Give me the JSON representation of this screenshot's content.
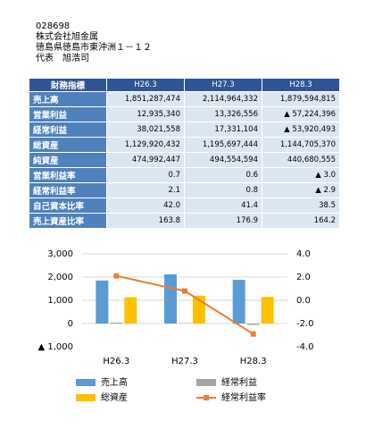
{
  "company": {
    "code": "028698",
    "name": "株式会社旭金属",
    "address": "徳島県徳島市東沖洲１－１２",
    "representative": "代表　旭浩司"
  },
  "table": {
    "header": [
      "財務指標",
      "H26.3",
      "H27.3",
      "H28.3"
    ],
    "rows": [
      [
        "売上高",
        "1,851,287,474",
        "2,114,964,332",
        "1,879,594,815"
      ],
      [
        "営業利益",
        "12,935,340",
        "13,326,556",
        "▲ 57,224,396"
      ],
      [
        "経常利益",
        "38,021,558",
        "17,331,104",
        "▲ 53,920,493"
      ],
      [
        "総資産",
        "1,129,920,432",
        "1,195,697,444",
        "1,144,705,370"
      ],
      [
        "純資産",
        "474,992,447",
        "494,554,594",
        "440,680,555"
      ],
      [
        "営業利益率",
        "0.7",
        "0.6",
        "▲ 3.0"
      ],
      [
        "経常利益率",
        "2.1",
        "0.8",
        "▲ 2.9"
      ],
      [
        "自己資本比率",
        "42.0",
        "41.4",
        "38.5"
      ],
      [
        "売上資産比率",
        "163.8",
        "176.9",
        "164.2"
      ]
    ]
  },
  "chart_data": {
    "type": "bar",
    "categories": [
      "H26.3",
      "H27.3",
      "H28.3"
    ],
    "series": [
      {
        "name": "売上高",
        "color": "#5b9bd5",
        "values": [
          1851,
          2115,
          1880
        ]
      },
      {
        "name": "経常利益",
        "color": "#a5a5a5",
        "values": [
          38,
          17,
          -54
        ]
      },
      {
        "name": "総資産",
        "color": "#ffc000",
        "values": [
          1130,
          1196,
          1145
        ]
      },
      {
        "name": "経常利益率",
        "color": "#ed7d31",
        "type": "line",
        "axis": "y2",
        "values": [
          2.1,
          0.8,
          -2.9
        ]
      }
    ],
    "ylim": [
      -1000,
      3000
    ],
    "yticks": [
      {
        "value": -1000,
        "label": "▲ 1,000"
      },
      0,
      {
        "value": 1000,
        "label": "1,000"
      },
      {
        "value": 2000,
        "label": "2,000"
      },
      {
        "value": 3000,
        "label": "3,000"
      }
    ],
    "y2lim": [
      -4,
      4
    ],
    "y2ticks": [
      {
        "value": -4,
        "label": "-4.0"
      },
      {
        "value": -2,
        "label": "-2.0"
      },
      {
        "value": 0,
        "label": "0.0"
      },
      {
        "value": 2,
        "label": "2.0"
      },
      {
        "value": 4,
        "label": "4.0"
      }
    ],
    "grid": true
  }
}
